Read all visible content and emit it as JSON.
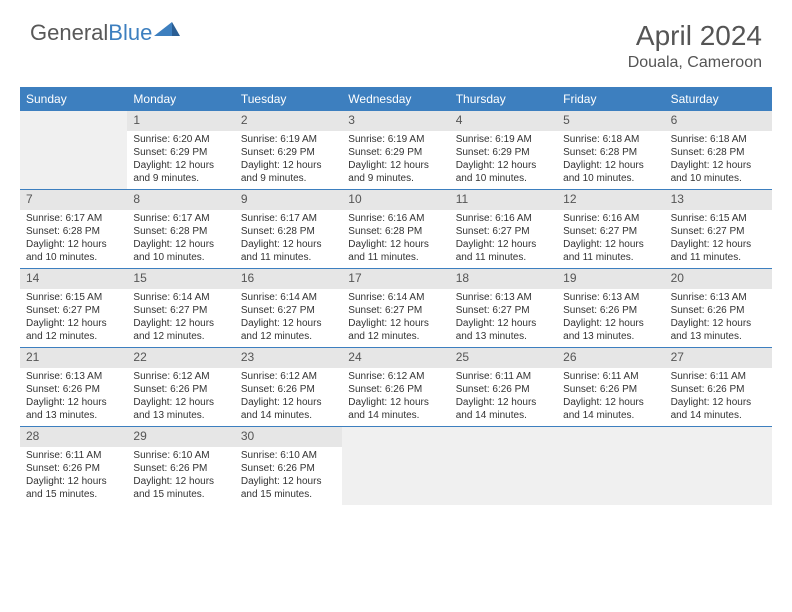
{
  "logo": {
    "text1": "General",
    "text2": "Blue"
  },
  "title": "April 2024",
  "location": "Douala, Cameroon",
  "colors": {
    "header_bg": "#3d7fbf",
    "header_text": "#ffffff",
    "daynum_bg": "#e6e6e6",
    "empty_bg": "#f0f0f0",
    "rule": "#3d7fbf",
    "text": "#333333"
  },
  "dayNames": [
    "Sunday",
    "Monday",
    "Tuesday",
    "Wednesday",
    "Thursday",
    "Friday",
    "Saturday"
  ],
  "weeks": [
    [
      null,
      {
        "n": "1",
        "sr": "6:20 AM",
        "ss": "6:29 PM",
        "dl": "12 hours and 9 minutes."
      },
      {
        "n": "2",
        "sr": "6:19 AM",
        "ss": "6:29 PM",
        "dl": "12 hours and 9 minutes."
      },
      {
        "n": "3",
        "sr": "6:19 AM",
        "ss": "6:29 PM",
        "dl": "12 hours and 9 minutes."
      },
      {
        "n": "4",
        "sr": "6:19 AM",
        "ss": "6:29 PM",
        "dl": "12 hours and 10 minutes."
      },
      {
        "n": "5",
        "sr": "6:18 AM",
        "ss": "6:28 PM",
        "dl": "12 hours and 10 minutes."
      },
      {
        "n": "6",
        "sr": "6:18 AM",
        "ss": "6:28 PM",
        "dl": "12 hours and 10 minutes."
      }
    ],
    [
      {
        "n": "7",
        "sr": "6:17 AM",
        "ss": "6:28 PM",
        "dl": "12 hours and 10 minutes."
      },
      {
        "n": "8",
        "sr": "6:17 AM",
        "ss": "6:28 PM",
        "dl": "12 hours and 10 minutes."
      },
      {
        "n": "9",
        "sr": "6:17 AM",
        "ss": "6:28 PM",
        "dl": "12 hours and 11 minutes."
      },
      {
        "n": "10",
        "sr": "6:16 AM",
        "ss": "6:28 PM",
        "dl": "12 hours and 11 minutes."
      },
      {
        "n": "11",
        "sr": "6:16 AM",
        "ss": "6:27 PM",
        "dl": "12 hours and 11 minutes."
      },
      {
        "n": "12",
        "sr": "6:16 AM",
        "ss": "6:27 PM",
        "dl": "12 hours and 11 minutes."
      },
      {
        "n": "13",
        "sr": "6:15 AM",
        "ss": "6:27 PM",
        "dl": "12 hours and 11 minutes."
      }
    ],
    [
      {
        "n": "14",
        "sr": "6:15 AM",
        "ss": "6:27 PM",
        "dl": "12 hours and 12 minutes."
      },
      {
        "n": "15",
        "sr": "6:14 AM",
        "ss": "6:27 PM",
        "dl": "12 hours and 12 minutes."
      },
      {
        "n": "16",
        "sr": "6:14 AM",
        "ss": "6:27 PM",
        "dl": "12 hours and 12 minutes."
      },
      {
        "n": "17",
        "sr": "6:14 AM",
        "ss": "6:27 PM",
        "dl": "12 hours and 12 minutes."
      },
      {
        "n": "18",
        "sr": "6:13 AM",
        "ss": "6:27 PM",
        "dl": "12 hours and 13 minutes."
      },
      {
        "n": "19",
        "sr": "6:13 AM",
        "ss": "6:26 PM",
        "dl": "12 hours and 13 minutes."
      },
      {
        "n": "20",
        "sr": "6:13 AM",
        "ss": "6:26 PM",
        "dl": "12 hours and 13 minutes."
      }
    ],
    [
      {
        "n": "21",
        "sr": "6:13 AM",
        "ss": "6:26 PM",
        "dl": "12 hours and 13 minutes."
      },
      {
        "n": "22",
        "sr": "6:12 AM",
        "ss": "6:26 PM",
        "dl": "12 hours and 13 minutes."
      },
      {
        "n": "23",
        "sr": "6:12 AM",
        "ss": "6:26 PM",
        "dl": "12 hours and 14 minutes."
      },
      {
        "n": "24",
        "sr": "6:12 AM",
        "ss": "6:26 PM",
        "dl": "12 hours and 14 minutes."
      },
      {
        "n": "25",
        "sr": "6:11 AM",
        "ss": "6:26 PM",
        "dl": "12 hours and 14 minutes."
      },
      {
        "n": "26",
        "sr": "6:11 AM",
        "ss": "6:26 PM",
        "dl": "12 hours and 14 minutes."
      },
      {
        "n": "27",
        "sr": "6:11 AM",
        "ss": "6:26 PM",
        "dl": "12 hours and 14 minutes."
      }
    ],
    [
      {
        "n": "28",
        "sr": "6:11 AM",
        "ss": "6:26 PM",
        "dl": "12 hours and 15 minutes."
      },
      {
        "n": "29",
        "sr": "6:10 AM",
        "ss": "6:26 PM",
        "dl": "12 hours and 15 minutes."
      },
      {
        "n": "30",
        "sr": "6:10 AM",
        "ss": "6:26 PM",
        "dl": "12 hours and 15 minutes."
      },
      null,
      null,
      null,
      null
    ]
  ],
  "labels": {
    "sunrise": "Sunrise:",
    "sunset": "Sunset:",
    "daylight": "Daylight:"
  }
}
